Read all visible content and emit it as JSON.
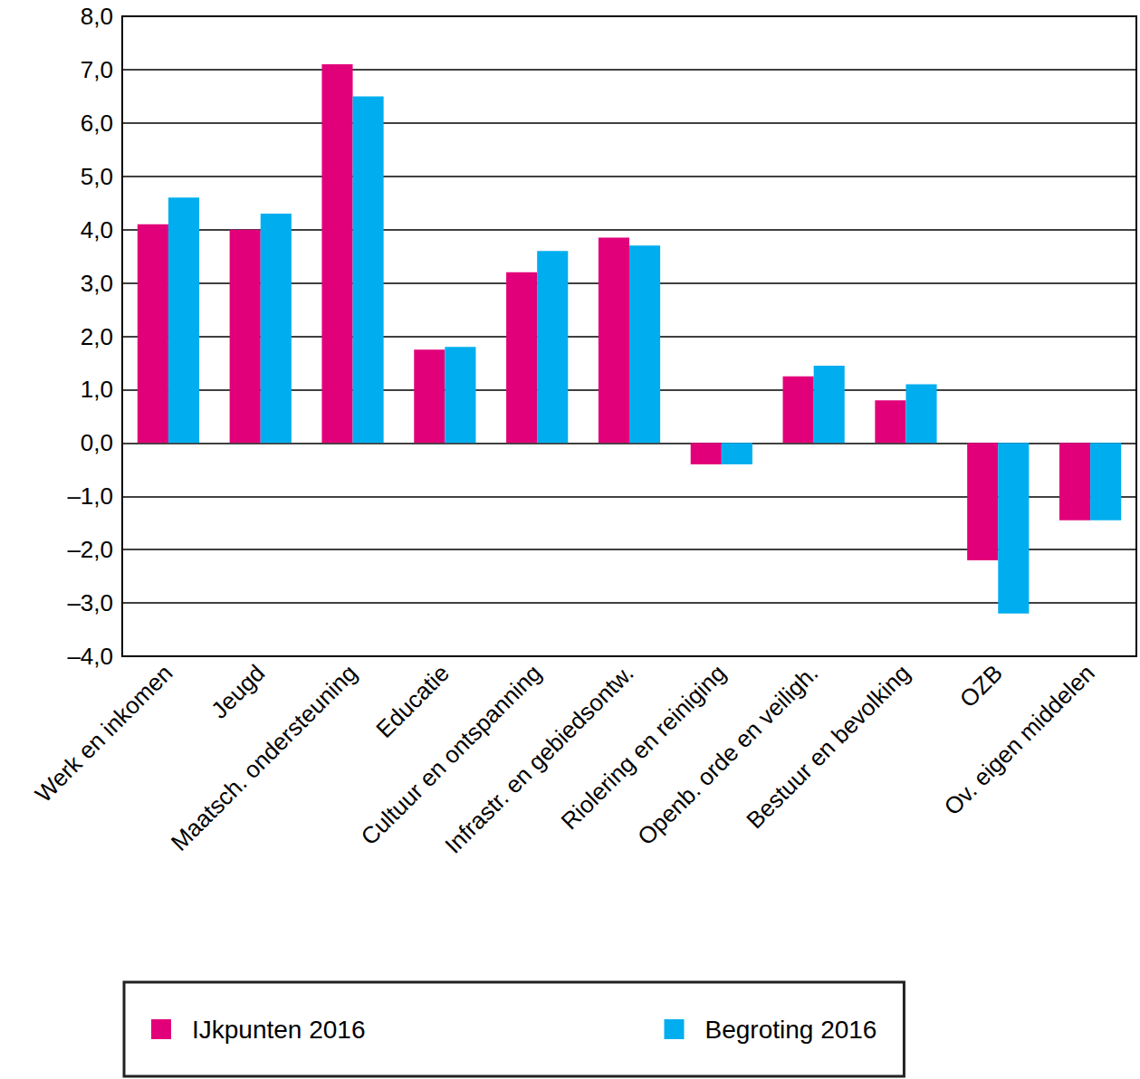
{
  "chart_data": {
    "type": "bar",
    "categories": [
      "Werk en inkomen",
      "Jeugd",
      "Maatsch. ondersteuning",
      "Educatie",
      "Cultuur en ontspanning",
      "Infrastr. en gebiedsontw.",
      "Riolering en reiniging",
      "Openb. orde en veiligh.",
      "Bestuur en bevolking",
      "OZB",
      "Ov. eigen middelen"
    ],
    "series": [
      {
        "name": "IJkpunten 2016",
        "color": "#e2007a",
        "values": [
          4.1,
          4.0,
          7.1,
          1.75,
          3.2,
          3.85,
          -0.4,
          1.25,
          0.8,
          -2.2,
          -1.45
        ]
      },
      {
        "name": "Begroting 2016",
        "color": "#00aeef",
        "values": [
          4.6,
          4.3,
          6.5,
          1.8,
          3.6,
          3.7,
          -0.4,
          1.45,
          1.1,
          -3.2,
          -1.45
        ]
      }
    ],
    "ylim": [
      -4,
      8
    ],
    "yticks": [
      {
        "value": -4,
        "label": "–4,0"
      },
      {
        "value": -3,
        "label": "–3,0"
      },
      {
        "value": -2,
        "label": "–2,0"
      },
      {
        "value": -1,
        "label": "–1,0"
      },
      {
        "value": 0,
        "label": "0,0"
      },
      {
        "value": 1,
        "label": "1,0"
      },
      {
        "value": 2,
        "label": "2,0"
      },
      {
        "value": 3,
        "label": "3,0"
      },
      {
        "value": 4,
        "label": "4,0"
      },
      {
        "value": 5,
        "label": "5,0"
      },
      {
        "value": 6,
        "label": "6,0"
      },
      {
        "value": 7,
        "label": "7,0"
      },
      {
        "value": 8,
        "label": "8,0"
      }
    ],
    "grid": true,
    "legend": "bottom"
  }
}
